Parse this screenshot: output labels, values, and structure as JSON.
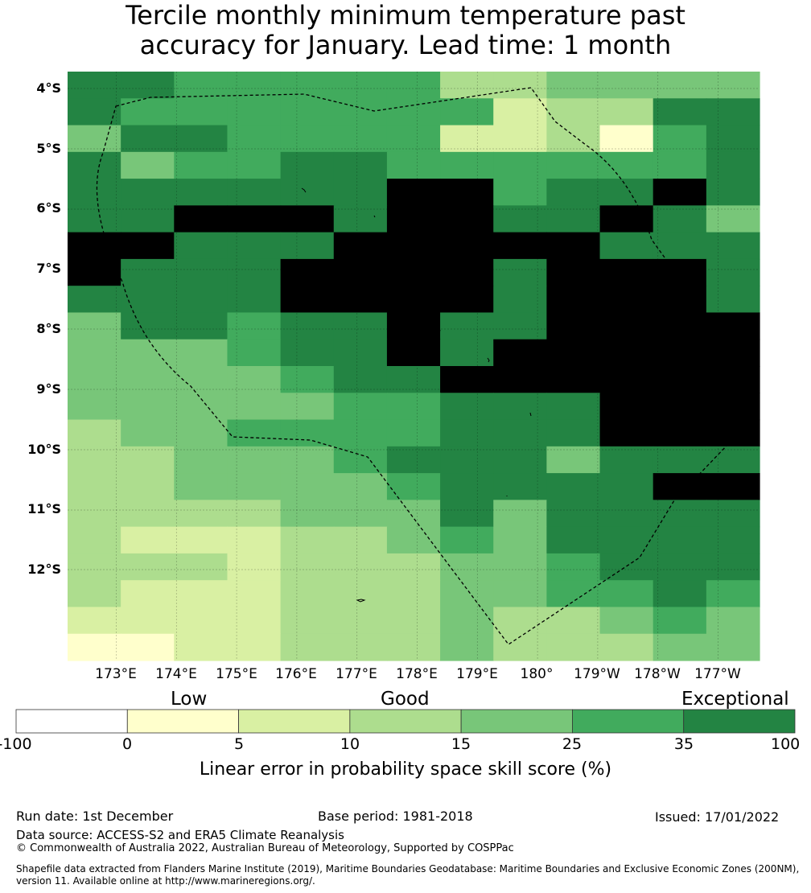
{
  "title": {
    "line1": "Tercile monthly minimum temperature past",
    "line2": "accuracy for January. Lead time: 1 month"
  },
  "map": {
    "lat_labels": [
      "4°S",
      "5°S",
      "6°S",
      "7°S",
      "8°S",
      "9°S",
      "10°S",
      "11°S",
      "12°S"
    ],
    "lon_labels": [
      "173°E",
      "174°E",
      "175°E",
      "176°E",
      "177°E",
      "178°E",
      "179°E",
      "180°",
      "179°W",
      "178°W",
      "177°W"
    ],
    "grid": [
      "5544444223333",
      "5444444412255",
      "3554444112045",
      "5344554444445",
      "5555556645565",
      "5566656655653",
      "6655566666555",
      "6555666656665",
      "5555666656665",
      "3554556556666",
      "3334556566666",
      "3333455666666",
      "3333344555666",
      "2334444555666",
      "2233345553555",
      "2233334555566",
      "2222333535555",
      "2111223435555",
      "2221222334555",
      "2111222334454",
      "1111222322343",
      "0011222322233"
    ]
  },
  "colorbar": {
    "categories": [
      "Low",
      "Good",
      "Exceptional"
    ],
    "ticks": [
      "-100",
      "0",
      "5",
      "10",
      "15",
      "25",
      "35",
      "100"
    ],
    "colors": [
      "#ffffff",
      "#ffffcc",
      "#d9f0a3",
      "#addd8e",
      "#78c679",
      "#41ab5d",
      "#238443"
    ],
    "title": "Linear error in probability space skill score (%)"
  },
  "footer": {
    "run_date": "Run date: 1st December",
    "base_period": "Base period: 1981-2018",
    "issued": "Issued: 17/01/2022",
    "data_source": "Data source: ACCESS-S2 and ERA5 Climate Reanalysis",
    "copyright": "© Commonwealth of Australia 2022, Australian Bureau of Meteorology, Supported by COSPPac",
    "shapefile_line1": "Shapefile data extracted from Flanders Marine Institute (2019), Maritime Boundaries Geodatabase: Maritime Boundaries and Exclusive Economic Zones (200NM),",
    "shapefile_line2": "version 11. Available online at http://www.marineregions.org/."
  }
}
